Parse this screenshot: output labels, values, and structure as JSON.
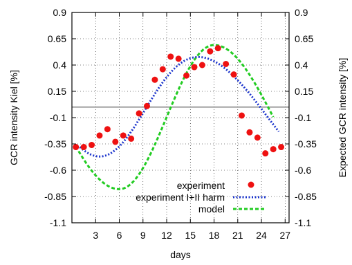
{
  "chart_data": {
    "type": "scatter",
    "xlabel": "days",
    "ylabel_left": "GCR intensity Kiel [%]",
    "ylabel_right": "Expected GCR intensity [%]",
    "xlim": [
      0,
      27.5
    ],
    "ylim": [
      -1.1,
      0.9
    ],
    "xticks": [
      3,
      6,
      9,
      12,
      15,
      18,
      21,
      24,
      27
    ],
    "yticks": [
      0.9,
      0.65,
      0.4,
      0.15,
      -0.1,
      -0.35,
      -0.6,
      -0.85,
      -1.1
    ],
    "grid": true,
    "legend_position": "bottom-right",
    "reference_line_y": 0.0,
    "series": [
      {
        "name": "experiment",
        "style": "points",
        "color": "#ee1111",
        "x": [
          0.5,
          1.5,
          2.5,
          3.5,
          4.5,
          5.5,
          6.5,
          7.5,
          8.5,
          9.5,
          10.5,
          11.5,
          12.5,
          13.5,
          14.5,
          15.5,
          16.5,
          17.5,
          18.5,
          19.5,
          20.5,
          21.5,
          22.5,
          23.5,
          24.5,
          25.5,
          26.5
        ],
        "y": [
          -0.38,
          -0.38,
          -0.36,
          -0.27,
          -0.21,
          -0.33,
          -0.27,
          -0.3,
          -0.06,
          0.01,
          0.26,
          0.36,
          0.48,
          0.46,
          0.3,
          0.38,
          0.4,
          0.53,
          0.56,
          0.41,
          0.31,
          -0.08,
          -0.24,
          -0.29,
          -0.44,
          -0.4,
          -0.38
        ]
      },
      {
        "name": "experiment I+II harm",
        "style": "dotted",
        "color": "#1a33cc",
        "fn": "harmonic",
        "params": {
          "a0": 0.025,
          "a1": 0.47,
          "peak_day": 16.6,
          "a2": -0.035,
          "phase2_day": 5.0,
          "period": 27.0
        }
      },
      {
        "name": "model",
        "style": "dashed",
        "color": "#22cc22",
        "fn": "model",
        "params": {
          "offset": -0.095,
          "amp": 0.685,
          "peak_day": 18.0,
          "trough_day": 6.0,
          "period": 27.0
        }
      }
    ]
  }
}
